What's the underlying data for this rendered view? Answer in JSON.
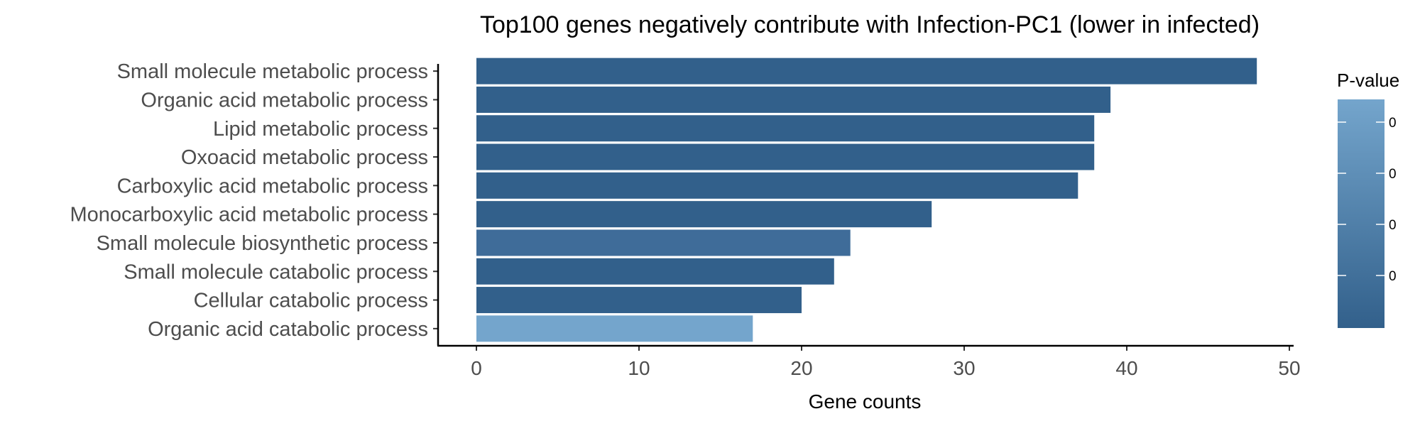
{
  "chart_data": {
    "type": "bar",
    "orientation": "horizontal",
    "title": "Top100 genes negatively contribute with Infection-PC1 (lower in infected)",
    "xlabel": "Gene counts",
    "ylabel": "",
    "xlim": [
      0,
      50
    ],
    "xticks": [
      0,
      10,
      20,
      30,
      40,
      50
    ],
    "categories": [
      "Small molecule metabolic process",
      "Organic acid metabolic process",
      "Lipid metabolic process",
      "Oxoacid metabolic process",
      "Carboxylic acid metabolic process",
      "Monocarboxylic acid metabolic process",
      "Small molecule biosynthetic process",
      "Small molecule catabolic process",
      "Cellular catabolic process",
      "Organic acid catabolic process"
    ],
    "values": [
      48,
      39,
      38,
      38,
      37,
      28,
      23,
      22,
      20,
      17
    ],
    "bar_colors": [
      "#32608b",
      "#32608b",
      "#32608b",
      "#32608b",
      "#32608b",
      "#32608b",
      "#3f6c99",
      "#32608b",
      "#32608b",
      "#74a5cc"
    ],
    "legend": {
      "title": "P-value",
      "tick_labels": [
        "0",
        "0",
        "0",
        "0"
      ],
      "color_high": "#74a5cc",
      "color_low": "#32608b",
      "placement": "right"
    },
    "grid": false
  }
}
